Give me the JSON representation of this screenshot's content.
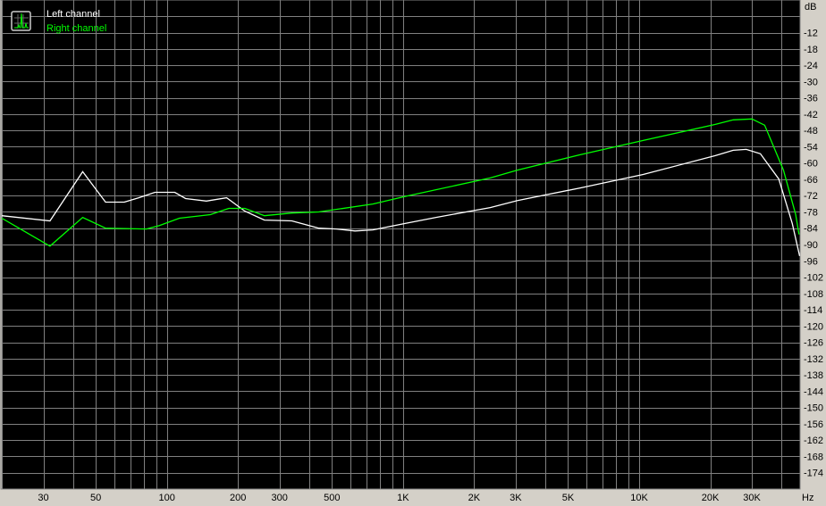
{
  "chart_data": {
    "type": "line",
    "title": "",
    "xlabel": "Hz",
    "ylabel": "dB",
    "x_scale": "log",
    "xlim": [
      20,
      48000
    ],
    "ylim": [
      -180,
      0
    ],
    "grid": true,
    "legend_placement": "top-left",
    "background": "#000000",
    "grid_color": "#808080",
    "x_ticks": [
      {
        "value": 30,
        "label": "30"
      },
      {
        "value": 50,
        "label": "50"
      },
      {
        "value": 100,
        "label": "100"
      },
      {
        "value": 200,
        "label": "200"
      },
      {
        "value": 300,
        "label": "300"
      },
      {
        "value": 500,
        "label": "500"
      },
      {
        "value": 1000,
        "label": "1K"
      },
      {
        "value": 2000,
        "label": "2K"
      },
      {
        "value": 3000,
        "label": "3K"
      },
      {
        "value": 5000,
        "label": "5K"
      },
      {
        "value": 10000,
        "label": "10K"
      },
      {
        "value": 20000,
        "label": "20K"
      },
      {
        "value": 30000,
        "label": "30K"
      }
    ],
    "y_ticks": [
      -12,
      -18,
      -24,
      -30,
      -36,
      -42,
      -48,
      -54,
      -60,
      -66,
      -72,
      -78,
      -84,
      -90,
      -96,
      -102,
      -108,
      -114,
      -120,
      -126,
      -132,
      -138,
      -144,
      -150,
      -156,
      -162,
      -168,
      -174
    ],
    "series": [
      {
        "name": "Left channel",
        "color": "#ffffff",
        "x": [
          20,
          32,
          44,
          55,
          66,
          76,
          89,
          108,
          120,
          147,
          179,
          214,
          259,
          338,
          440,
          524,
          626,
          745,
          1010,
          1380,
          2340,
          3050,
          5600,
          10400,
          21000,
          25000,
          28400,
          32600,
          39000,
          44500,
          47800
        ],
        "y": [
          -79.4,
          -81.3,
          -63.2,
          -74.4,
          -74.4,
          -72.8,
          -70.8,
          -70.8,
          -73.1,
          -74,
          -72.8,
          -77.7,
          -81,
          -81.3,
          -84,
          -84.3,
          -85,
          -84.6,
          -82.3,
          -80,
          -76.4,
          -73.8,
          -69.2,
          -64.2,
          -57.3,
          -55.3,
          -55,
          -56.6,
          -65.9,
          -82.3,
          -94.2
        ]
      },
      {
        "name": "Right channel",
        "color": "#00ff00",
        "x": [
          20,
          32,
          44,
          55,
          82,
          93,
          113,
          153,
          183,
          214,
          259,
          338,
          440,
          745,
          1010,
          2340,
          3050,
          5600,
          10400,
          21000,
          25000,
          30000,
          34000,
          40800,
          46000,
          47500
        ],
        "y": [
          -80.3,
          -90.6,
          -80,
          -84,
          -84.3,
          -83,
          -80.3,
          -79,
          -76.7,
          -76.7,
          -79.4,
          -78.4,
          -78,
          -75.1,
          -72.4,
          -65.5,
          -62.6,
          -57,
          -51.7,
          -45.8,
          -44.1,
          -43.8,
          -46.1,
          -62.6,
          -79,
          -86.3
        ]
      }
    ]
  }
}
